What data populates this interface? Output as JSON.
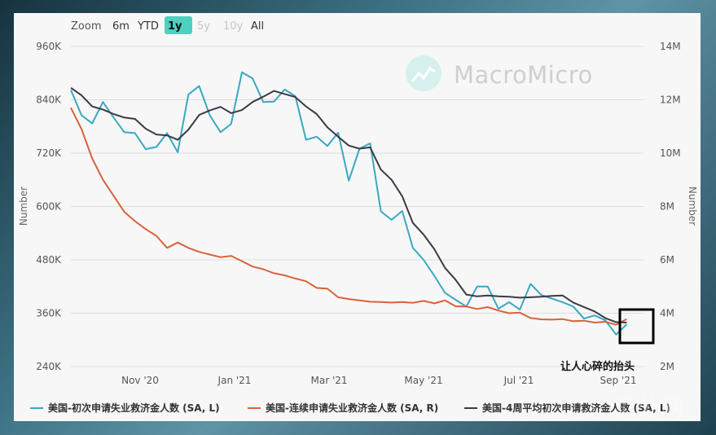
{
  "zoom": {
    "label": "Zoom",
    "buttons": [
      {
        "label": "6m",
        "state": "enabled"
      },
      {
        "label": "YTD",
        "state": "enabled"
      },
      {
        "label": "1y",
        "state": "active"
      },
      {
        "label": "5y",
        "state": "disabled"
      },
      {
        "label": "10y",
        "state": "disabled"
      },
      {
        "label": "All",
        "state": "enabled"
      }
    ]
  },
  "watermark": {
    "text": "MacroMicro"
  },
  "corner_watermark": {
    "text": "汇外网"
  },
  "annotation": {
    "text": "让人心碎的抬头"
  },
  "colors": {
    "initial": "#3aa8c1",
    "continuing": "#d9623b",
    "avg4w": "#3b3b45",
    "annotation_box": "#000000"
  },
  "chart_data": {
    "type": "line",
    "xlabel": "",
    "x_ticks": [
      "Nov '20",
      "Jan '21",
      "Mar '21",
      "May '21",
      "Jul '21",
      "Sep '21"
    ],
    "x_range": [
      "2020-09-12",
      "2021-09-22"
    ],
    "left_axis": {
      "title": "Number",
      "ticks": [
        "240K",
        "360K",
        "480K",
        "600K",
        "720K",
        "840K",
        "960K"
      ],
      "range": [
        240000,
        960000
      ]
    },
    "right_axis": {
      "title": "Number",
      "ticks": [
        "2M",
        "4M",
        "6M",
        "8M",
        "10M",
        "12M",
        "14M"
      ],
      "range": [
        2000000,
        14000000
      ]
    },
    "grid": true,
    "legend_position": "bottom",
    "series": [
      {
        "name": "美国-初次申请失业救济金人数 (SA, L)",
        "axis": "left",
        "x": [
          "2020-09-12",
          "2020-09-19",
          "2020-09-26",
          "2020-10-03",
          "2020-10-10",
          "2020-10-17",
          "2020-10-24",
          "2020-10-31",
          "2020-11-07",
          "2020-11-14",
          "2020-11-21",
          "2020-11-28",
          "2020-12-05",
          "2020-12-12",
          "2020-12-19",
          "2020-12-26",
          "2021-01-02",
          "2021-01-09",
          "2021-01-16",
          "2021-01-23",
          "2021-01-30",
          "2021-02-06",
          "2021-02-13",
          "2021-02-20",
          "2021-02-27",
          "2021-03-06",
          "2021-03-13",
          "2021-03-20",
          "2021-03-27",
          "2021-04-03",
          "2021-04-10",
          "2021-04-17",
          "2021-04-24",
          "2021-05-01",
          "2021-05-08",
          "2021-05-15",
          "2021-05-22",
          "2021-05-29",
          "2021-06-05",
          "2021-06-12",
          "2021-06-19",
          "2021-06-26",
          "2021-07-03",
          "2021-07-10",
          "2021-07-17",
          "2021-07-24",
          "2021-07-31",
          "2021-08-07",
          "2021-08-14",
          "2021-08-21",
          "2021-08-28",
          "2021-09-04",
          "2021-09-11"
        ],
        "values": [
          862000,
          805000,
          787000,
          835000,
          800000,
          767000,
          765000,
          729000,
          734000,
          765000,
          722000,
          852000,
          871000,
          805000,
          767000,
          786000,
          902000,
          888000,
          835000,
          836000,
          863000,
          848000,
          750000,
          757000,
          736000,
          766000,
          658000,
          730000,
          742000,
          589000,
          570000,
          590000,
          507000,
          480000,
          444000,
          406000,
          390000,
          375000,
          420000,
          420000,
          370000,
          385000,
          368000,
          426000,
          401000,
          393000,
          385000,
          375000,
          348000,
          355000,
          344000,
          312000,
          335000
        ]
      },
      {
        "name": "美国-连续申请失业救济金人数 (SA, R)",
        "axis": "right",
        "x": [
          "2020-09-12",
          "2020-09-19",
          "2020-09-26",
          "2020-10-03",
          "2020-10-10",
          "2020-10-17",
          "2020-10-24",
          "2020-10-31",
          "2020-11-07",
          "2020-11-14",
          "2020-11-21",
          "2020-11-28",
          "2020-12-05",
          "2020-12-12",
          "2020-12-19",
          "2020-12-26",
          "2021-01-02",
          "2021-01-09",
          "2021-01-16",
          "2021-01-23",
          "2021-01-30",
          "2021-02-06",
          "2021-02-13",
          "2021-02-20",
          "2021-02-27",
          "2021-03-06",
          "2021-03-13",
          "2021-03-20",
          "2021-03-27",
          "2021-04-03",
          "2021-04-10",
          "2021-04-17",
          "2021-04-24",
          "2021-05-01",
          "2021-05-08",
          "2021-05-15",
          "2021-05-22",
          "2021-05-29",
          "2021-06-05",
          "2021-06-12",
          "2021-06-19",
          "2021-06-26",
          "2021-07-03",
          "2021-07-10",
          "2021-07-17",
          "2021-07-24",
          "2021-07-31",
          "2021-08-07",
          "2021-08-14",
          "2021-08-21",
          "2021-08-28",
          "2021-09-04",
          "2021-09-11"
        ],
        "values": [
          11700000,
          10900000,
          9800000,
          9000000,
          8400000,
          7800000,
          7450000,
          7150000,
          6900000,
          6450000,
          6650000,
          6450000,
          6300000,
          6200000,
          6100000,
          6150000,
          5950000,
          5750000,
          5650000,
          5500000,
          5420000,
          5300000,
          5200000,
          4950000,
          4920000,
          4600000,
          4530000,
          4480000,
          4430000,
          4420000,
          4400000,
          4420000,
          4390000,
          4460000,
          4370000,
          4480000,
          4260000,
          4250000,
          4160000,
          4230000,
          4100000,
          4000000,
          4020000,
          3820000,
          3770000,
          3760000,
          3780000,
          3700000,
          3720000,
          3650000,
          3680000,
          3570000,
          3780000
        ]
      },
      {
        "name": "美国-4周平均初次申请救济金人数 (SA, L)",
        "axis": "left",
        "x": [
          "2020-09-12",
          "2020-09-19",
          "2020-09-26",
          "2020-10-03",
          "2020-10-10",
          "2020-10-17",
          "2020-10-24",
          "2020-10-31",
          "2020-11-07",
          "2020-11-14",
          "2020-11-21",
          "2020-11-28",
          "2020-12-05",
          "2020-12-12",
          "2020-12-19",
          "2020-12-26",
          "2021-01-02",
          "2021-01-09",
          "2021-01-16",
          "2021-01-23",
          "2021-01-30",
          "2021-02-06",
          "2021-02-13",
          "2021-02-20",
          "2021-02-27",
          "2021-03-06",
          "2021-03-13",
          "2021-03-20",
          "2021-03-27",
          "2021-04-03",
          "2021-04-10",
          "2021-04-17",
          "2021-04-24",
          "2021-05-01",
          "2021-05-08",
          "2021-05-15",
          "2021-05-22",
          "2021-05-29",
          "2021-06-05",
          "2021-06-12",
          "2021-06-19",
          "2021-06-26",
          "2021-07-03",
          "2021-07-10",
          "2021-07-17",
          "2021-07-24",
          "2021-07-31",
          "2021-08-07",
          "2021-08-14",
          "2021-08-21",
          "2021-08-28",
          "2021-09-04",
          "2021-09-11"
        ],
        "values": [
          867000,
          850000,
          825000,
          818000,
          808000,
          800000,
          797000,
          775000,
          762000,
          760000,
          750000,
          773000,
          806000,
          816000,
          824000,
          810000,
          817000,
          835000,
          847000,
          860000,
          853000,
          846000,
          825000,
          808000,
          778000,
          757000,
          737000,
          730000,
          733000,
          683000,
          660000,
          623000,
          563000,
          537000,
          504000,
          462000,
          435000,
          402000,
          398000,
          400000,
          398000,
          397000,
          395000,
          396000,
          397000,
          399000,
          400000,
          384000,
          374000,
          364000,
          349000,
          340000,
          339000
        ]
      }
    ]
  }
}
